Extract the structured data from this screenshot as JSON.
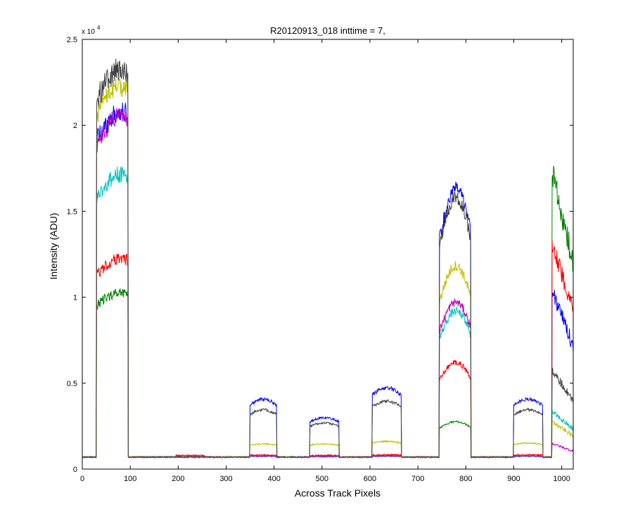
{
  "chart_data": {
    "type": "line",
    "title": "R20120913_018 inttime = 7,",
    "xlabel": "Across Track Pixels",
    "ylabel": "Intensity (ADU)",
    "xlim": [
      0,
      1024
    ],
    "ylim": [
      0,
      25000
    ],
    "y_exponent_label": "x 10",
    "y_exponent_power": "4",
    "xticks": [
      0,
      100,
      200,
      300,
      400,
      500,
      600,
      700,
      800,
      900,
      1000
    ],
    "xtick_labels": [
      "0",
      "100",
      "200",
      "300",
      "400",
      "500",
      "600",
      "700",
      "800",
      "900",
      "1000"
    ],
    "yticks": [
      0,
      5000,
      10000,
      15000,
      20000,
      25000
    ],
    "ytick_labels": [
      "0",
      "0.5",
      "1",
      "1.5",
      "2",
      "2.5"
    ],
    "grid": false,
    "legend": "none",
    "baseline": 700,
    "series": [
      {
        "color": "#0000ff",
        "slit_levels": [
          21200,
          700,
          4000,
          2950,
          4650,
          15400,
          4000,
          3300,
          9000
        ]
      },
      {
        "color": "#008000",
        "slit_levels": [
          10500,
          700,
          780,
          760,
          780,
          2650,
          760,
          780,
          15000
        ]
      },
      {
        "color": "#ff0000",
        "slit_levels": [
          12500,
          800,
          820,
          800,
          830,
          5900,
          830,
          820,
          11500
        ]
      },
      {
        "color": "#00bfbf",
        "slit_levels": [
          17500,
          720,
          740,
          720,
          740,
          8700,
          740,
          740,
          2900
        ]
      },
      {
        "color": "#bf00bf",
        "slit_levels": [
          21000,
          740,
          760,
          740,
          760,
          9200,
          760,
          760,
          1300
        ]
      },
      {
        "color": "#bfbf00",
        "slit_levels": [
          22800,
          700,
          1450,
          1450,
          1600,
          11200,
          1500,
          1400,
          2400
        ]
      },
      {
        "color": "#404040",
        "slit_levels": [
          23800,
          700,
          3400,
          2650,
          3900,
          15000,
          3400,
          2900,
          5000
        ]
      }
    ],
    "slit_ranges": [
      [
        30,
        95
      ],
      [
        195,
        255
      ],
      [
        350,
        405
      ],
      [
        475,
        535
      ],
      [
        605,
        665
      ],
      [
        745,
        810
      ],
      [
        900,
        960
      ],
      [
        980,
        1024
      ]
    ]
  }
}
